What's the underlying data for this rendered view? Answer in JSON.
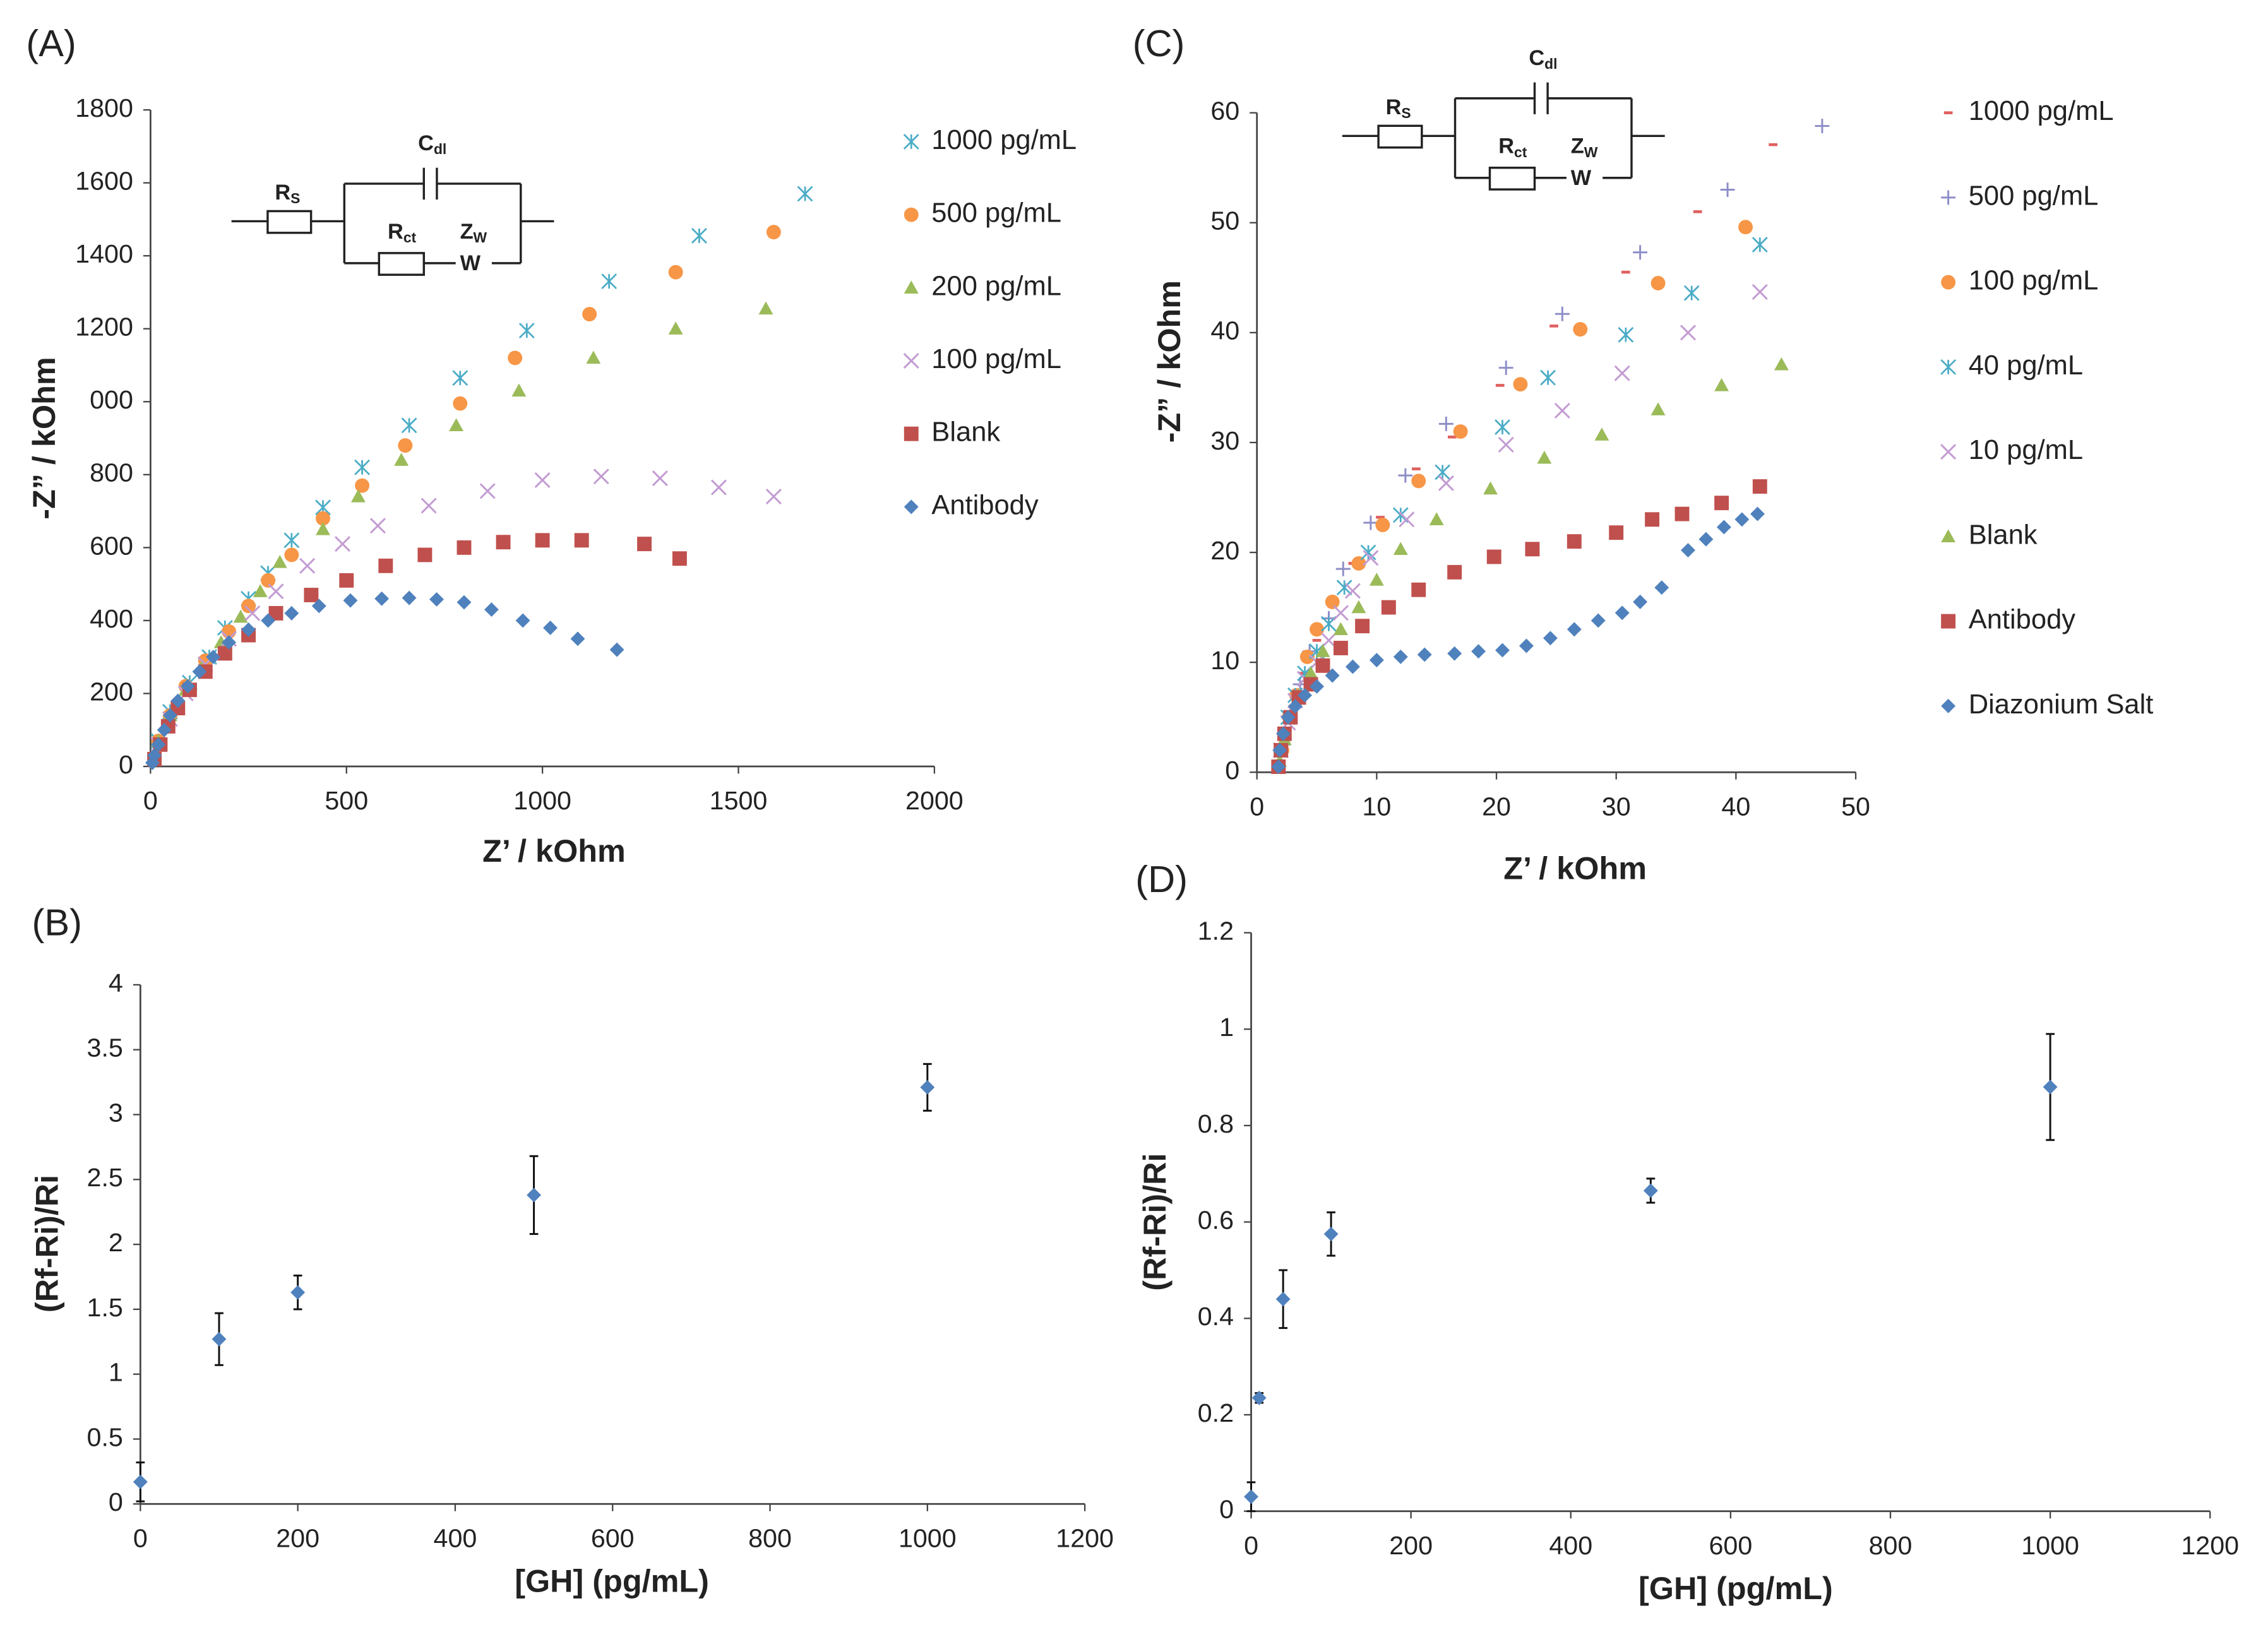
{
  "chart_data": [
    {
      "type": "scatter",
      "panel": "(A)",
      "x_label": "Z’ / kOhm",
      "y_label": "-Z” / kOhm",
      "xlim": [
        0,
        2000
      ],
      "xticks": [
        0,
        500,
        1000,
        1500,
        2000
      ],
      "ylim": [
        0,
        1800
      ],
      "yticks": [
        0,
        200,
        400,
        600,
        800,
        {
          "value": 1000,
          "label": "000"
        },
        1200,
        1400,
        1600,
        1800
      ],
      "legend": true,
      "circuit_labels": [
        {
          "text": "R",
          "sub": "S"
        },
        {
          "text": "C",
          "sub": "dl"
        },
        {
          "text": "R",
          "sub": "ct"
        },
        {
          "text": "Z",
          "sub": "W"
        },
        {
          "text": "W"
        }
      ],
      "series": [
        {
          "name": "1000 pg/mL",
          "color": "#4bacc6",
          "marker": "asterisk",
          "x": [
            20,
            50,
            100,
            150,
            190,
            250,
            300,
            360,
            440,
            540,
            660,
            790,
            960,
            1170,
            1400,
            1670
          ],
          "values": [
            70,
            150,
            230,
            300,
            380,
            460,
            530,
            620,
            710,
            820,
            935,
            1065,
            1195,
            1330,
            1455,
            1570
          ]
        },
        {
          "name": "500 pg/mL",
          "color": "#f79646",
          "marker": "circle",
          "x": [
            20,
            50,
            90,
            140,
            200,
            250,
            300,
            360,
            440,
            540,
            650,
            790,
            930,
            1120,
            1340,
            1590
          ],
          "values": [
            70,
            140,
            220,
            290,
            370,
            440,
            510,
            580,
            680,
            770,
            880,
            995,
            1120,
            1240,
            1355,
            1465
          ]
        },
        {
          "name": "200 pg/mL",
          "color": "#9bbb59",
          "marker": "triangle",
          "x": [
            20,
            50,
            90,
            130,
            180,
            230,
            280,
            330,
            440,
            530,
            640,
            780,
            940,
            1130,
            1340,
            1570
          ],
          "values": [
            70,
            140,
            210,
            270,
            340,
            410,
            480,
            560,
            650,
            740,
            840,
            935,
            1030,
            1120,
            1200,
            1255
          ]
        },
        {
          "name": "100 pg/mL",
          "color": "#c39bd3",
          "marker": "x",
          "x": [
            20,
            50,
            90,
            140,
            200,
            260,
            320,
            400,
            490,
            580,
            710,
            860,
            1000,
            1150,
            1300,
            1450,
            1590
          ],
          "values": [
            60,
            130,
            200,
            280,
            350,
            420,
            480,
            550,
            610,
            660,
            715,
            755,
            785,
            795,
            790,
            765,
            740
          ]
        },
        {
          "name": "Blank",
          "color": "#c0504d",
          "marker": "square",
          "x": [
            10,
            25,
            45,
            70,
            100,
            140,
            190,
            250,
            320,
            410,
            500,
            600,
            700,
            800,
            900,
            1000,
            1100,
            1260,
            1350
          ],
          "values": [
            20,
            60,
            110,
            160,
            210,
            260,
            310,
            360,
            420,
            470,
            510,
            550,
            580,
            600,
            615,
            620,
            620,
            610,
            570
          ]
        },
        {
          "name": "Antibody",
          "color": "#4f81bd",
          "marker": "diamond",
          "x": [
            5,
            10,
            20,
            35,
            50,
            70,
            95,
            125,
            160,
            200,
            250,
            300,
            360,
            430,
            510,
            590,
            660,
            730,
            800,
            870,
            950,
            1020,
            1090,
            1190
          ],
          "values": [
            10,
            30,
            60,
            100,
            140,
            180,
            220,
            260,
            300,
            340,
            375,
            400,
            420,
            440,
            455,
            460,
            462,
            458,
            450,
            430,
            400,
            380,
            350,
            320
          ]
        }
      ]
    },
    {
      "type": "errorbar",
      "panel": "(B)",
      "x_label": "[GH] (pg/mL)",
      "y_label": "(Rf-Ri)/Ri",
      "xlim": [
        0,
        1200
      ],
      "xticks": [
        0,
        200,
        400,
        600,
        800,
        1000,
        1200
      ],
      "ylim": [
        0,
        4
      ],
      "yticks": [
        0,
        0.5,
        1,
        1.5,
        2,
        2.5,
        3,
        3.5,
        4
      ],
      "legend": false,
      "series": [
        {
          "color": "#4f81bd",
          "marker": "diamond",
          "x": [
            0,
            100,
            200,
            500,
            1000
          ],
          "values": [
            0.17,
            1.27,
            1.63,
            2.38,
            3.21
          ],
          "errors": [
            0.15,
            0.2,
            0.13,
            0.3,
            0.18
          ]
        }
      ]
    },
    {
      "type": "scatter",
      "panel": "(C)",
      "x_label": "Z’ / kOhm",
      "y_label": "-Z” / kOhm",
      "xlim": [
        0,
        50
      ],
      "xticks": [
        0,
        10,
        20,
        30,
        40,
        50
      ],
      "ylim": [
        0,
        60
      ],
      "yticks": [
        0,
        10,
        20,
        30,
        40,
        50,
        60
      ],
      "legend": true,
      "circuit_labels": [
        {
          "text": "R",
          "sub": "S"
        },
        {
          "text": "C",
          "sub": "dl"
        },
        {
          "text": "R",
          "sub": "ct"
        },
        {
          "text": "Z",
          "sub": "W"
        },
        {
          "text": "W"
        }
      ],
      "series": [
        {
          "name": "1000 pg/mL",
          "color": "#e06060",
          "marker": "dash",
          "x": [
            2.3,
            3,
            3.9,
            5,
            6.5,
            8,
            10.3,
            13.3,
            16.3,
            20.3,
            24.8,
            30.8,
            36.8,
            43.1
          ],
          "values": [
            3,
            6,
            9,
            12,
            15.5,
            19,
            23.2,
            27.6,
            30.5,
            35.2,
            40.6,
            45.5,
            51,
            57.1
          ]
        },
        {
          "name": "500 pg/mL",
          "color": "#8e8ec8",
          "marker": "plus",
          "x": [
            2.2,
            2.8,
            3.6,
            4.4,
            6,
            7.2,
            9.5,
            12.4,
            15.8,
            20.8,
            25.5,
            32,
            39.3,
            47.2
          ],
          "values": [
            2.5,
            5.5,
            8,
            11,
            14,
            18.5,
            22.7,
            27,
            31.7,
            36.8,
            41.7,
            47.3,
            53,
            58.8
          ]
        },
        {
          "name": "100 pg/mL",
          "color": "#f79646",
          "marker": "circle",
          "x": [
            2.1,
            2.7,
            3.3,
            4.2,
            5,
            6.3,
            8.5,
            10.5,
            13.5,
            17,
            22,
            27,
            33.5,
            40.8
          ],
          "values": [
            2,
            5,
            7,
            10.5,
            13,
            15.5,
            19,
            22.5,
            26.5,
            31,
            35.3,
            40.3,
            44.5,
            49.6
          ]
        },
        {
          "name": "40 pg/mL",
          "color": "#4bacc6",
          "marker": "asterisk",
          "x": [
            2,
            2.6,
            3.2,
            4,
            5,
            6,
            7.3,
            9.3,
            12,
            15.5,
            20.5,
            24.3,
            30.8,
            36.3,
            42
          ],
          "values": [
            2,
            5,
            7,
            9,
            11,
            13.5,
            16.8,
            20,
            23.4,
            27.3,
            31.4,
            35.9,
            39.8,
            43.6,
            48
          ]
        },
        {
          "name": "10 pg/mL",
          "color": "#c39bd3",
          "marker": "x",
          "x": [
            2,
            2.6,
            3.2,
            4,
            5,
            6,
            7,
            8,
            9.5,
            12.5,
            15.8,
            20.8,
            25.5,
            30.5,
            36,
            42
          ],
          "values": [
            2,
            4.5,
            6.5,
            8.5,
            10,
            12,
            14.5,
            16.5,
            19.5,
            23,
            26.3,
            29.8,
            32.9,
            36.3,
            40,
            43.7
          ]
        },
        {
          "name": "Blank",
          "color": "#9bbb59",
          "marker": "triangle",
          "x": [
            1.9,
            2.3,
            2.8,
            3.5,
            4.5,
            5.5,
            7,
            8.5,
            10,
            12,
            15,
            19.5,
            24,
            28.8,
            33.5,
            38.8,
            43.8
          ],
          "values": [
            1,
            3,
            5,
            7,
            9,
            11,
            13,
            15,
            17.5,
            20.3,
            23,
            25.8,
            28.6,
            30.7,
            33,
            35.2,
            37.1
          ]
        },
        {
          "name": "Antibody",
          "color": "#c0504d",
          "marker": "square",
          "x": [
            1.8,
            2,
            2.3,
            2.8,
            3.5,
            4.5,
            5.5,
            7,
            8.8,
            11,
            13.5,
            16.5,
            19.8,
            23,
            26.5,
            30,
            33,
            35.5,
            38.8,
            42
          ],
          "values": [
            0.5,
            2,
            3.5,
            5,
            6.8,
            8,
            9.7,
            11.3,
            13.3,
            15,
            16.6,
            18.2,
            19.6,
            20.3,
            21,
            21.8,
            23,
            23.5,
            24.5,
            26
          ]
        },
        {
          "name": "Diazonium Salt",
          "color": "#4f81bd",
          "marker": "diamond",
          "x": [
            1.8,
            1.9,
            2.2,
            2.6,
            3.2,
            4,
            5,
            6.3,
            8,
            10,
            12,
            14,
            16.5,
            18.5,
            20.5,
            22.5,
            24.5,
            26.5,
            28.5,
            30.5,
            32,
            33.8,
            36,
            37.5,
            39,
            40.5,
            41.8
          ],
          "values": [
            0.5,
            2,
            3.5,
            5,
            6,
            7,
            7.8,
            8.8,
            9.6,
            10.2,
            10.5,
            10.7,
            10.8,
            11,
            11.1,
            11.5,
            12.2,
            13,
            13.8,
            14.5,
            15.5,
            16.8,
            20.2,
            21.2,
            22.3,
            23,
            23.5
          ]
        }
      ]
    },
    {
      "type": "errorbar",
      "panel": "(D)",
      "x_label": "[GH] (pg/mL)",
      "y_label": "(Rf-Ri)/Ri",
      "xlim": [
        0,
        1200
      ],
      "xticks": [
        0,
        200,
        400,
        600,
        800,
        1000,
        1200
      ],
      "ylim": [
        0,
        1.2
      ],
      "yticks": [
        0,
        0.2,
        0.4,
        0.6,
        0.8,
        1,
        1.2
      ],
      "legend": false,
      "series": [
        {
          "color": "#4f81bd",
          "marker": "diamond",
          "x": [
            0,
            10,
            40,
            100,
            500,
            1000
          ],
          "values": [
            0.03,
            0.235,
            0.44,
            0.575,
            0.665,
            0.88
          ],
          "errors": [
            0.03,
            0.01,
            0.06,
            0.045,
            0.025,
            0.11
          ]
        }
      ]
    }
  ]
}
